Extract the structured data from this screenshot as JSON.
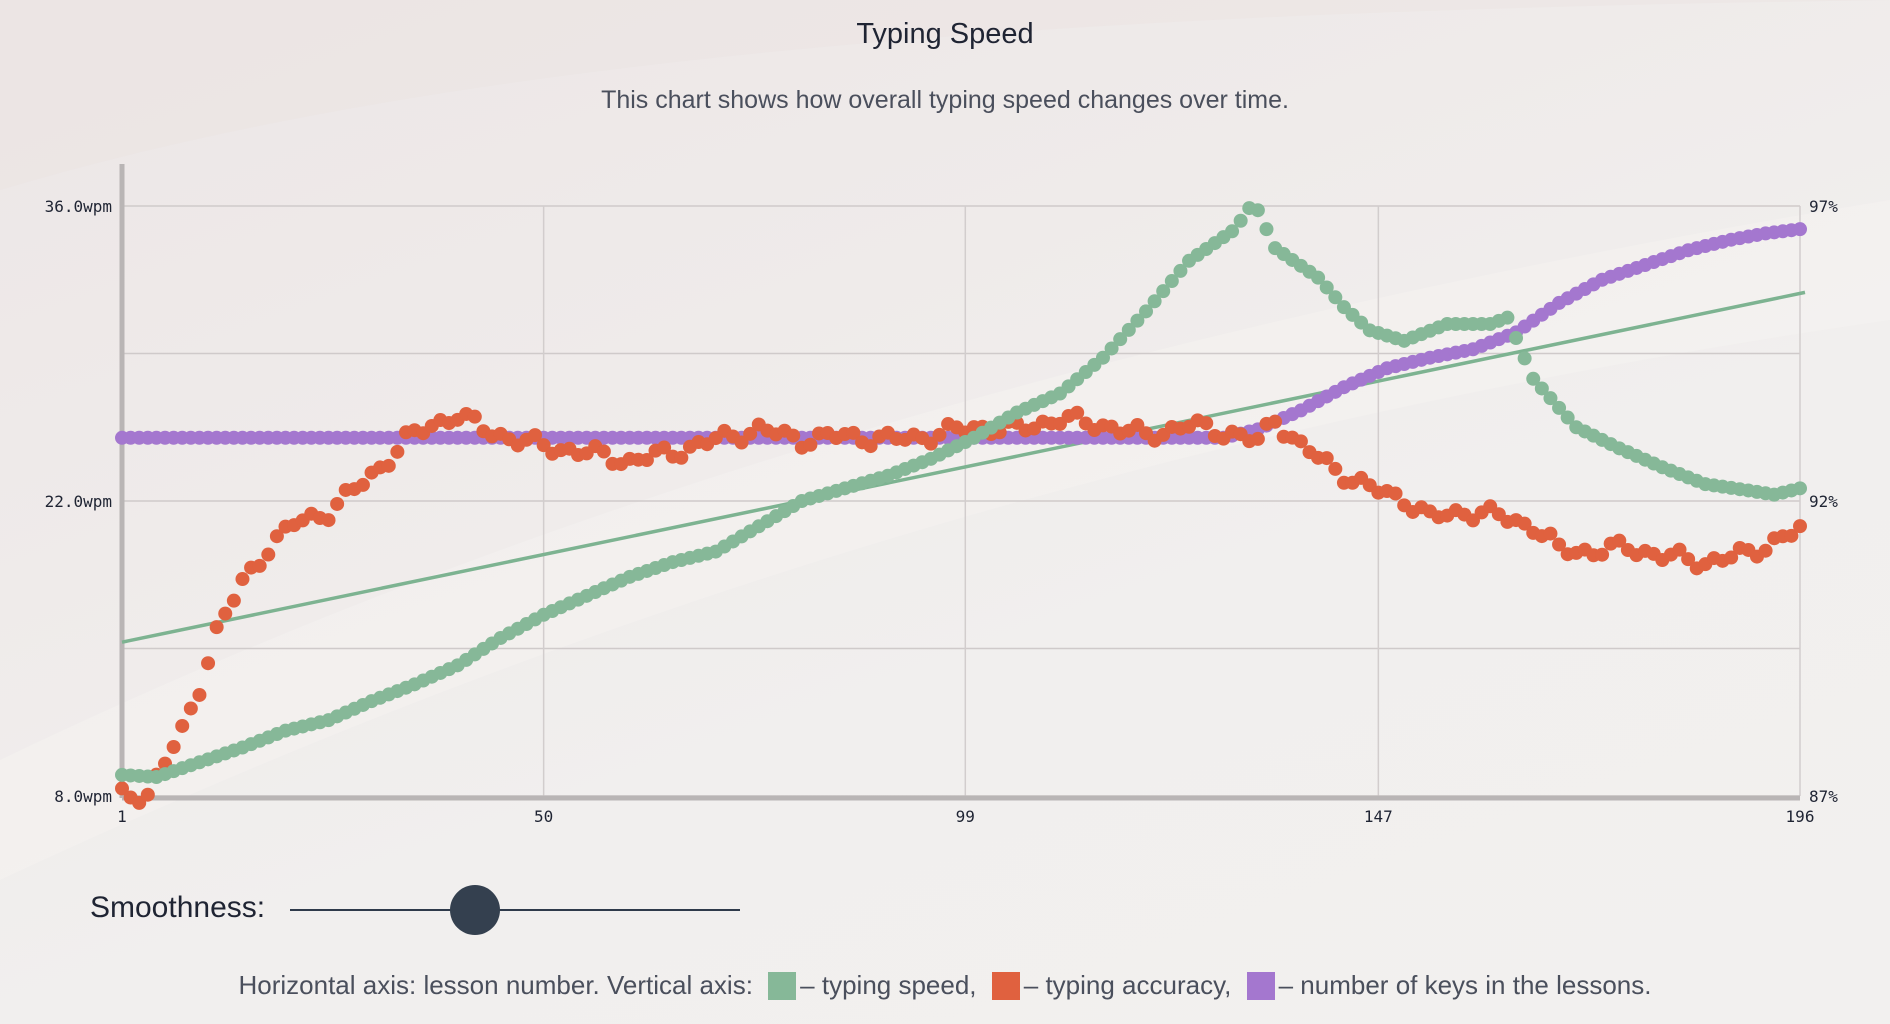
{
  "title": "Typing Speed",
  "subtitle": "This chart shows how overall typing speed changes over time.",
  "smoothness": {
    "label": "Smoothness:",
    "value": 0.41
  },
  "legend": {
    "prefix": "Horizontal axis: lesson number. Vertical axis:",
    "items": [
      {
        "label": "– typing speed,",
        "color": "#86b898"
      },
      {
        "label": "– typing accuracy,",
        "color": "#e0613f"
      },
      {
        "label": "– number of keys in the lessons.",
        "color": "#a477cf"
      }
    ]
  },
  "chart_data": {
    "type": "scatter",
    "x_ticks": [
      "1",
      "50",
      "99",
      "147",
      "196"
    ],
    "xlim": [
      1,
      196
    ],
    "y_left_ticks": [
      "8.0wpm",
      "22.0wpm",
      "36.0wpm"
    ],
    "y_left_lim": [
      8,
      36
    ],
    "y_right_ticks": [
      "87%",
      "92%",
      "97%"
    ],
    "y_right_lim": [
      87,
      97
    ],
    "grid": true,
    "series": [
      {
        "name": "typing speed",
        "color": "#86b898",
        "points": [
          [
            1,
            9.0
          ],
          [
            5,
            8.9
          ],
          [
            10,
            9.6
          ],
          [
            15,
            10.3
          ],
          [
            20,
            11.1
          ],
          [
            25,
            11.6
          ],
          [
            30,
            12.5
          ],
          [
            35,
            13.3
          ],
          [
            40,
            14.2
          ],
          [
            45,
            15.5
          ],
          [
            50,
            16.6
          ],
          [
            55,
            17.5
          ],
          [
            60,
            18.4
          ],
          [
            65,
            19.1
          ],
          [
            70,
            19.6
          ],
          [
            75,
            20.8
          ],
          [
            80,
            22.0
          ],
          [
            85,
            22.6
          ],
          [
            90,
            23.2
          ],
          [
            95,
            24.0
          ],
          [
            100,
            25.0
          ],
          [
            105,
            26.2
          ],
          [
            110,
            27.1
          ],
          [
            115,
            28.8
          ],
          [
            120,
            31.0
          ],
          [
            125,
            33.4
          ],
          [
            130,
            34.8
          ],
          [
            131,
            35.3
          ],
          [
            132,
            35.9
          ],
          [
            133,
            35.8
          ],
          [
            135,
            34.0
          ],
          [
            140,
            32.6
          ],
          [
            143,
            31.2
          ],
          [
            146,
            30.1
          ],
          [
            150,
            29.6
          ],
          [
            155,
            30.4
          ],
          [
            160,
            30.4
          ],
          [
            162,
            30.7
          ],
          [
            165,
            27.8
          ],
          [
            170,
            25.5
          ],
          [
            175,
            24.5
          ],
          [
            180,
            23.6
          ],
          [
            185,
            22.8
          ],
          [
            190,
            22.5
          ],
          [
            193,
            22.3
          ],
          [
            196,
            22.6
          ]
        ]
      },
      {
        "name": "typing accuracy",
        "color": "#e0613f",
        "points": [
          [
            1,
            8.0
          ],
          [
            4,
            8.1
          ],
          [
            6,
            9.6
          ],
          [
            8,
            11.0
          ],
          [
            10,
            13.2
          ],
          [
            12,
            15.8
          ],
          [
            15,
            18.1
          ],
          [
            18,
            19.8
          ],
          [
            21,
            20.9
          ],
          [
            25,
            21.5
          ],
          [
            28,
            22.5
          ],
          [
            31,
            23.6
          ],
          [
            34,
            24.9
          ],
          [
            37,
            25.6
          ],
          [
            40,
            26.1
          ],
          [
            43,
            25.4
          ],
          [
            46,
            25.0
          ],
          [
            50,
            24.6
          ],
          [
            55,
            24.3
          ],
          [
            60,
            23.9
          ],
          [
            65,
            24.3
          ],
          [
            70,
            24.9
          ],
          [
            75,
            25.4
          ],
          [
            80,
            24.9
          ],
          [
            85,
            25.1
          ],
          [
            90,
            24.9
          ],
          [
            95,
            25.1
          ],
          [
            100,
            25.5
          ],
          [
            105,
            25.4
          ],
          [
            110,
            25.9
          ],
          [
            115,
            25.6
          ],
          [
            120,
            25.1
          ],
          [
            125,
            25.6
          ],
          [
            130,
            25.2
          ],
          [
            133,
            24.8
          ],
          [
            135,
            25.9
          ],
          [
            138,
            24.6
          ],
          [
            142,
            23.5
          ],
          [
            146,
            22.6
          ],
          [
            150,
            22.1
          ],
          [
            153,
            21.2
          ],
          [
            157,
            21.5
          ],
          [
            161,
            21.3
          ],
          [
            165,
            20.8
          ],
          [
            168,
            19.7
          ],
          [
            172,
            19.6
          ],
          [
            176,
            19.8
          ],
          [
            180,
            19.4
          ],
          [
            185,
            19.1
          ],
          [
            190,
            19.5
          ],
          [
            193,
            20.1
          ],
          [
            196,
            20.6
          ]
        ]
      },
      {
        "name": "number of keys in the lessons",
        "color": "#a477cf",
        "points": [
          [
            1,
            25.0
          ],
          [
            20,
            25.0
          ],
          [
            40,
            25.0
          ],
          [
            60,
            25.0
          ],
          [
            80,
            25.0
          ],
          [
            100,
            25.0
          ],
          [
            120,
            25.0
          ],
          [
            129,
            25.0
          ],
          [
            133,
            25.4
          ],
          [
            138,
            26.3
          ],
          [
            143,
            27.4
          ],
          [
            148,
            28.3
          ],
          [
            153,
            28.8
          ],
          [
            158,
            29.2
          ],
          [
            163,
            30.0
          ],
          [
            168,
            31.4
          ],
          [
            173,
            32.5
          ],
          [
            178,
            33.2
          ],
          [
            183,
            33.9
          ],
          [
            188,
            34.4
          ],
          [
            192,
            34.7
          ],
          [
            196,
            34.9
          ]
        ]
      }
    ],
    "trendline": {
      "series": "typing speed",
      "color": "#7db391",
      "from": [
        1,
        15.3
      ],
      "to": [
        196,
        31.9
      ]
    }
  }
}
